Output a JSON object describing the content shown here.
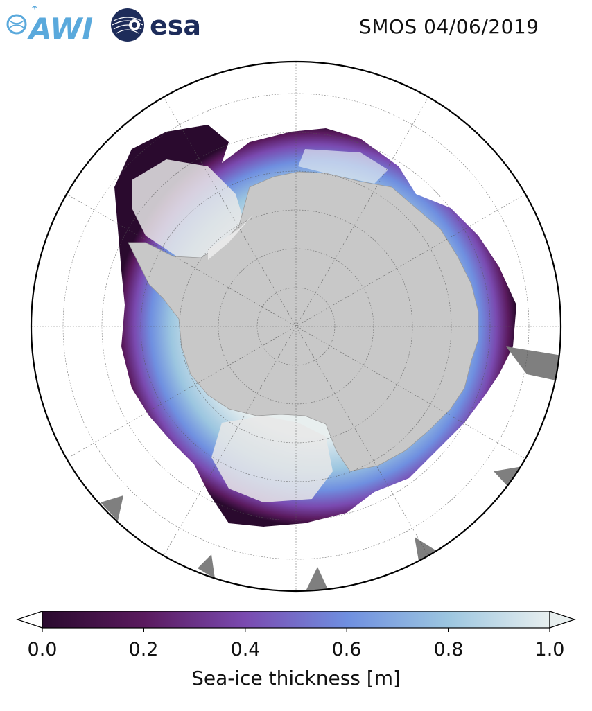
{
  "header": {
    "awi_logo_text": "AWI",
    "esa_logo_text": "esa",
    "title": "SMOS 04/06/2019"
  },
  "map": {
    "projection": "south-polar-stereographic",
    "variable": "Sea-ice thickness",
    "land_color": "#c8c8c8",
    "ice_shelf_color": "#e8e8e8",
    "nodata_color": "#7f7f7f",
    "gridlines": true
  },
  "colorbar": {
    "label": "Sea-ice thickness [m]",
    "ticks": [
      "0.0",
      "0.2",
      "0.4",
      "0.6",
      "0.8",
      "1.0"
    ],
    "min": 0.0,
    "max": 1.0,
    "extend": "both",
    "colormap_stops": [
      "#2a0a2e",
      "#5a1a5e",
      "#7a4ab0",
      "#6f8fe0",
      "#9cc6e0",
      "#e8efef"
    ]
  }
}
